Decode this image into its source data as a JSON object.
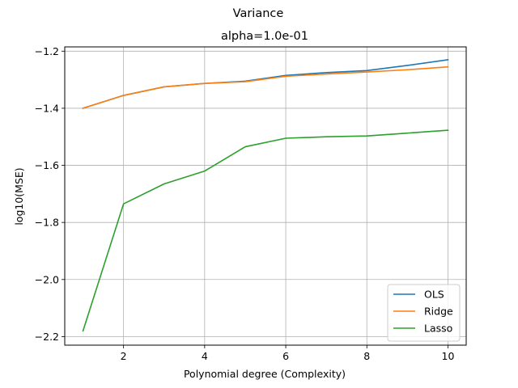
{
  "chart_data": {
    "type": "line",
    "suptitle": "Variance",
    "title": "alpha=1.0e-01",
    "xlabel": "Polynomial degree (Complexity)",
    "ylabel": "log10(MSE)",
    "xlim": [
      0.55,
      10.45
    ],
    "ylim": [
      -2.23,
      -1.185
    ],
    "xticks": [
      2,
      4,
      6,
      8,
      10
    ],
    "xtick_labels": [
      "2",
      "4",
      "6",
      "8",
      "10"
    ],
    "yticks": [
      -2.2,
      -2.0,
      -1.8,
      -1.6,
      -1.4,
      -1.2
    ],
    "ytick_labels": [
      "−2.2",
      "−2.0",
      "−1.8",
      "−1.6",
      "−1.4",
      "−1.2"
    ],
    "grid": true,
    "legend_position": "lower-right",
    "x": [
      1,
      2,
      3,
      4,
      5,
      6,
      7,
      8,
      9,
      10
    ],
    "series": [
      {
        "name": "OLS",
        "color": "#1f77b4",
        "values": [
          -1.4,
          -1.355,
          -1.325,
          -1.313,
          -1.305,
          -1.285,
          -1.275,
          -1.268,
          -1.25,
          -1.23
        ]
      },
      {
        "name": "Ridge",
        "color": "#ff7f0e",
        "values": [
          -1.4,
          -1.355,
          -1.325,
          -1.313,
          -1.307,
          -1.288,
          -1.28,
          -1.273,
          -1.265,
          -1.255
        ]
      },
      {
        "name": "Lasso",
        "color": "#2ca02c",
        "values": [
          -2.18,
          -1.735,
          -1.665,
          -1.62,
          -1.535,
          -1.505,
          -1.5,
          -1.497,
          -1.487,
          -1.477
        ]
      }
    ]
  }
}
